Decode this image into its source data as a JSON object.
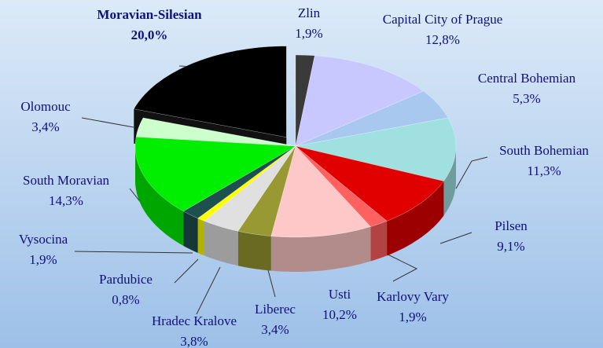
{
  "chart_data": {
    "type": "pie3d",
    "categories": [
      "Zlin",
      "Capital City of Prague",
      "Central Bohemian",
      "South Bohemian",
      "Pilsen",
      "Karlovy Vary",
      "Usti",
      "Liberec",
      "Hradec Kralove",
      "Pardubice",
      "Vysocina",
      "South Moravian",
      "Olomouc",
      "Moravian-Silesian"
    ],
    "values": [
      1.9,
      12.8,
      5.3,
      11.3,
      9.1,
      1.9,
      10.2,
      3.4,
      3.8,
      0.8,
      1.9,
      14.3,
      3.4,
      20.0
    ],
    "value_labels": [
      "1,9%",
      "12,8%",
      "5,3%",
      "11,3%",
      "9,1%",
      "1,9%",
      "10,2%",
      "3,4%",
      "3,8%",
      "0,8%",
      "1,9%",
      "14,3%",
      "3,4%",
      "20,0%"
    ],
    "colors": [
      "#3a3a3a",
      "#c8c8ff",
      "#a8c8f0",
      "#a0e0e0",
      "#e00000",
      "#ff6060",
      "#ffc8c8",
      "#999933",
      "#e0e0e0",
      "#ffff00",
      "#1f5050",
      "#00ee00",
      "#ccffcc",
      "#000000"
    ]
  }
}
